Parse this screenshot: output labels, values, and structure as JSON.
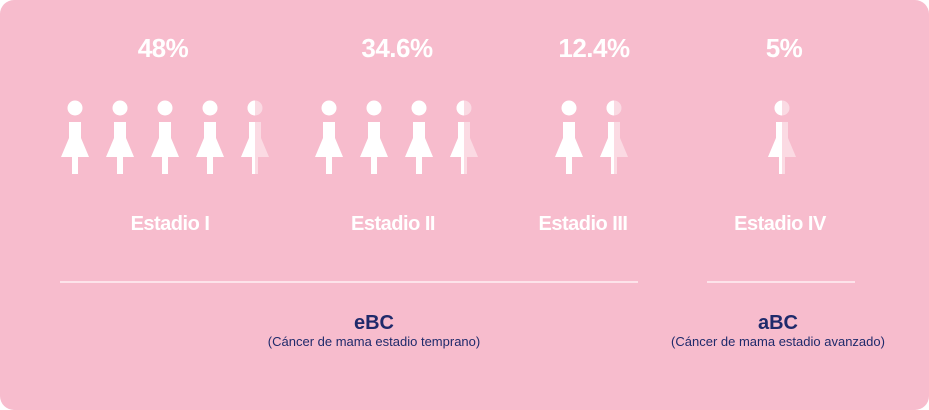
{
  "stages": [
    {
      "percent": "48%",
      "label": "Estadio I",
      "icons_full": 4,
      "partial_fill": 0.5
    },
    {
      "percent": "34.6%",
      "label": "Estadio II",
      "icons_full": 3,
      "partial_fill": 0.5
    },
    {
      "percent": "12.4%",
      "label": "Estadio III",
      "icons_full": 1,
      "partial_fill": 0.5
    },
    {
      "percent": "5%",
      "label": "Estadio IV",
      "icons_full": 0,
      "partial_fill": 0.5
    }
  ],
  "groups": [
    {
      "title": "eBC",
      "subtitle": "(Cáncer de mama estadio temprano)"
    },
    {
      "title": "aBC",
      "subtitle": "(Cáncer de mama estadio avanzado)"
    }
  ],
  "colors": {
    "background": "#f7bccd",
    "text": "#1f2a6b",
    "icon": "#ffffff"
  }
}
